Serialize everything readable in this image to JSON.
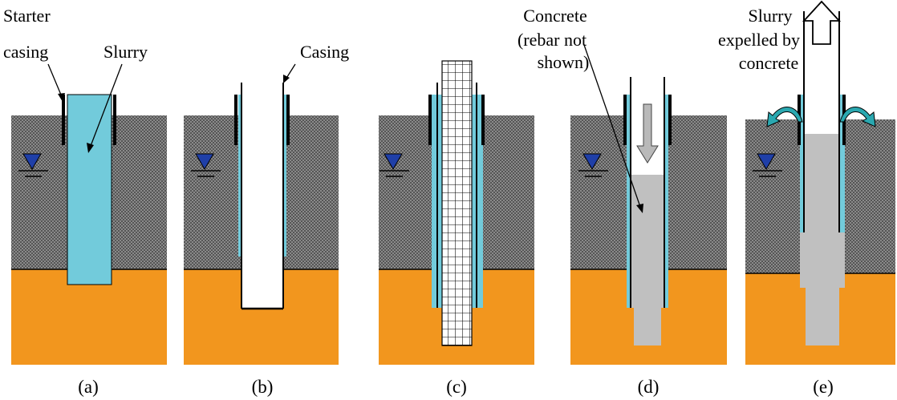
{
  "diagram": {
    "colors": {
      "soil": "#8a8a8a",
      "clay": "#f2961e",
      "slurry": "#72cbdb",
      "concrete": "#c0c0c0",
      "water_marker": "#1f3fa8",
      "arrow_fill": "#2aa8b0"
    },
    "panels": [
      {
        "caption": "(a)"
      },
      {
        "caption": "(b)"
      },
      {
        "caption": "(c)"
      },
      {
        "caption": "(d)"
      },
      {
        "caption": "(e)"
      }
    ],
    "labels": {
      "starter_line1": "Starter",
      "starter_line2": "casing",
      "slurry": "Slurry",
      "casing": "Casing",
      "concrete_line1": "Concrete",
      "concrete_line2": "(rebar not",
      "concrete_line3": "shown)",
      "expelled_line1": "Slurry",
      "expelled_line2": "expelled by",
      "expelled_line3": "concrete"
    }
  }
}
